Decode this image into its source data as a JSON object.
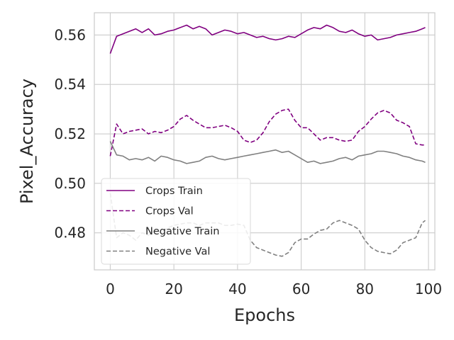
{
  "chart_data": {
    "type": "line",
    "xlabel": "Epochs",
    "ylabel": "Pixel_Accuracy",
    "xlim": [
      -5,
      102
    ],
    "ylim": [
      0.465,
      0.569
    ],
    "xticks": [
      0,
      20,
      40,
      60,
      80,
      100
    ],
    "yticks": [
      0.48,
      0.5,
      0.52,
      0.54,
      0.56
    ],
    "xtick_labels": [
      "0",
      "20",
      "40",
      "60",
      "80",
      "100"
    ],
    "ytick_labels": [
      "0.48",
      "0.50",
      "0.52",
      "0.54",
      "0.56"
    ],
    "grid": true,
    "legend_position": "lower-left",
    "series": [
      {
        "name": "Crops Train",
        "color": "#800080",
        "dash": "solid",
        "x": [
          0,
          2,
          4,
          6,
          8,
          10,
          12,
          14,
          16,
          18,
          20,
          22,
          24,
          26,
          28,
          30,
          32,
          34,
          36,
          38,
          40,
          42,
          44,
          46,
          48,
          50,
          52,
          54,
          56,
          58,
          60,
          62,
          64,
          66,
          68,
          70,
          72,
          74,
          76,
          78,
          80,
          82,
          84,
          86,
          88,
          90,
          92,
          94,
          96,
          98,
          99
        ],
        "y": [
          0.5525,
          0.5595,
          0.5605,
          0.5615,
          0.5625,
          0.561,
          0.5625,
          0.56,
          0.5605,
          0.5615,
          0.562,
          0.563,
          0.564,
          0.5625,
          0.5635,
          0.5625,
          0.56,
          0.561,
          0.562,
          0.5615,
          0.5605,
          0.561,
          0.56,
          0.559,
          0.5595,
          0.5585,
          0.558,
          0.5585,
          0.5595,
          0.559,
          0.5605,
          0.562,
          0.563,
          0.5625,
          0.564,
          0.563,
          0.5615,
          0.561,
          0.562,
          0.5605,
          0.5595,
          0.56,
          0.558,
          0.5585,
          0.559,
          0.56,
          0.5605,
          0.561,
          0.5615,
          0.5625,
          0.563
        ]
      },
      {
        "name": "Crops Val",
        "color": "#800080",
        "dash": "dashed",
        "x": [
          0,
          2,
          4,
          6,
          8,
          10,
          12,
          14,
          16,
          18,
          20,
          22,
          24,
          26,
          28,
          30,
          32,
          34,
          36,
          38,
          40,
          42,
          44,
          46,
          48,
          50,
          52,
          54,
          56,
          58,
          60,
          62,
          64,
          66,
          68,
          70,
          72,
          74,
          76,
          78,
          80,
          82,
          84,
          86,
          88,
          90,
          92,
          94,
          96,
          98,
          99
        ],
        "y": [
          0.511,
          0.524,
          0.52,
          0.521,
          0.5215,
          0.522,
          0.52,
          0.521,
          0.5205,
          0.5215,
          0.523,
          0.526,
          0.5275,
          0.5255,
          0.524,
          0.5225,
          0.5225,
          0.523,
          0.5235,
          0.5225,
          0.521,
          0.5175,
          0.5165,
          0.5175,
          0.5205,
          0.525,
          0.528,
          0.5295,
          0.53,
          0.5255,
          0.5225,
          0.5225,
          0.52,
          0.5175,
          0.5185,
          0.5185,
          0.5175,
          0.517,
          0.5175,
          0.521,
          0.523,
          0.526,
          0.5285,
          0.5295,
          0.5285,
          0.5255,
          0.5245,
          0.523,
          0.516,
          0.5155,
          0.5155
        ]
      },
      {
        "name": "Negative Train",
        "color": "#808080",
        "dash": "solid",
        "x": [
          0,
          2,
          4,
          6,
          8,
          10,
          12,
          14,
          16,
          18,
          20,
          22,
          24,
          26,
          28,
          30,
          32,
          34,
          36,
          38,
          40,
          42,
          44,
          46,
          48,
          50,
          52,
          54,
          56,
          58,
          60,
          62,
          64,
          66,
          68,
          70,
          72,
          74,
          76,
          78,
          80,
          82,
          84,
          86,
          88,
          90,
          92,
          94,
          96,
          98,
          99
        ],
        "y": [
          0.517,
          0.5115,
          0.511,
          0.5095,
          0.51,
          0.5095,
          0.5105,
          0.509,
          0.511,
          0.5105,
          0.5095,
          0.509,
          0.508,
          0.5085,
          0.509,
          0.5105,
          0.511,
          0.51,
          0.5095,
          0.51,
          0.5105,
          0.511,
          0.5115,
          0.512,
          0.5125,
          0.513,
          0.5135,
          0.5125,
          0.513,
          0.5115,
          0.51,
          0.5085,
          0.509,
          0.508,
          0.5085,
          0.509,
          0.51,
          0.5105,
          0.5095,
          0.511,
          0.5115,
          0.512,
          0.513,
          0.513,
          0.5125,
          0.512,
          0.511,
          0.5105,
          0.5095,
          0.509,
          0.5085
        ]
      },
      {
        "name": "Negative Val",
        "color": "#808080",
        "dash": "dashed",
        "x": [
          0,
          2,
          4,
          6,
          8,
          10,
          12,
          14,
          16,
          18,
          20,
          22,
          24,
          26,
          28,
          30,
          32,
          34,
          36,
          38,
          40,
          42,
          44,
          46,
          48,
          50,
          52,
          54,
          56,
          58,
          60,
          62,
          64,
          66,
          68,
          70,
          72,
          74,
          76,
          78,
          80,
          82,
          84,
          86,
          88,
          90,
          92,
          94,
          96,
          98,
          99
        ],
        "y": [
          0.496,
          0.478,
          0.48,
          0.479,
          0.477,
          0.48,
          0.479,
          0.481,
          0.48,
          0.482,
          0.483,
          0.4835,
          0.484,
          0.484,
          0.483,
          0.484,
          0.484,
          0.484,
          0.483,
          0.483,
          0.4835,
          0.483,
          0.477,
          0.474,
          0.473,
          0.472,
          0.471,
          0.4705,
          0.472,
          0.476,
          0.4775,
          0.4775,
          0.4795,
          0.481,
          0.4815,
          0.484,
          0.485,
          0.484,
          0.483,
          0.4815,
          0.477,
          0.474,
          0.4725,
          0.472,
          0.4715,
          0.473,
          0.476,
          0.477,
          0.478,
          0.484,
          0.485
        ]
      }
    ]
  }
}
